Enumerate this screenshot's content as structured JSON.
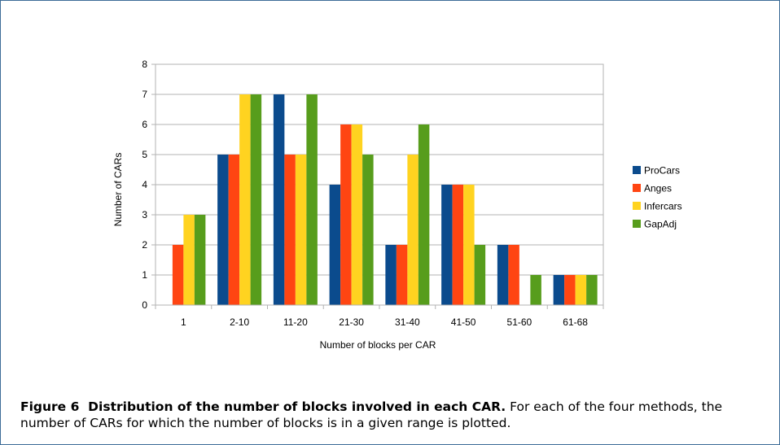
{
  "chart_data": {
    "type": "bar",
    "categories": [
      "1",
      "2-10",
      "11-20",
      "21-30",
      "31-40",
      "41-50",
      "51-60",
      "61-68"
    ],
    "series": [
      {
        "name": "ProCars",
        "color": "#0b4b8d",
        "values": [
          0,
          5,
          7,
          4,
          2,
          4,
          2,
          1
        ]
      },
      {
        "name": "Anges",
        "color": "#ff4512",
        "values": [
          2,
          5,
          5,
          6,
          2,
          4,
          2,
          1
        ]
      },
      {
        "name": "Infercars",
        "color": "#ffd320",
        "values": [
          3,
          7,
          5,
          6,
          5,
          4,
          0,
          1
        ]
      },
      {
        "name": "GapAdj",
        "color": "#579d1c",
        "values": [
          3,
          7,
          7,
          5,
          6,
          2,
          1,
          1
        ]
      }
    ],
    "xlabel": "Number of blocks per CAR",
    "ylabel": "Number of CARs",
    "ylim": [
      0,
      8
    ],
    "yticks": [
      "0",
      "1",
      "2",
      "3",
      "4",
      "5",
      "6",
      "7",
      "8"
    ],
    "grid": true,
    "legend": "right"
  },
  "caption": {
    "label": "Figure 6",
    "title": "Distribution of the number of blocks involved in each CAR.",
    "text": "For each of the four methods, the number of CARs for which the number of blocks is in a given range is plotted."
  }
}
